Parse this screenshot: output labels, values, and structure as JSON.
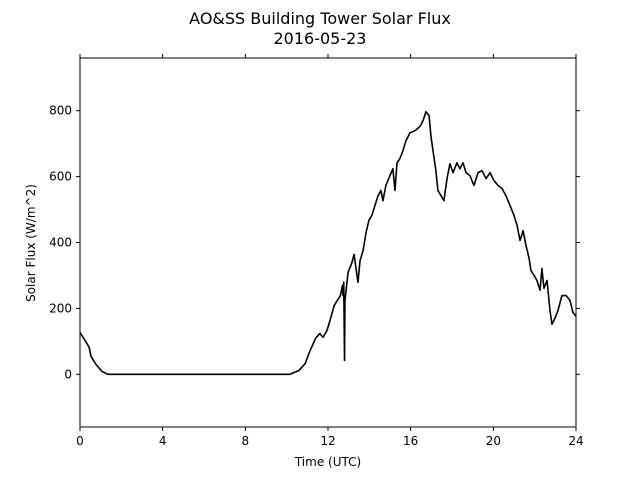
{
  "chart_data": {
    "type": "line",
    "title": "AO&SS Building Tower Solar Flux",
    "subtitle": "2016-05-23",
    "x_label": "Time (UTC)",
    "y_label": "Solar Flux (W/m^2)",
    "xlim": [
      0,
      24
    ],
    "xticks": [
      0,
      4,
      8,
      12,
      16,
      20,
      24
    ],
    "ylim": [
      -160,
      960
    ],
    "yticks": [
      0,
      200,
      400,
      600,
      800
    ],
    "grid": false,
    "series": [
      {
        "color": "#000000",
        "x": [
          0,
          0.24,
          0.44,
          0.53,
          0.77,
          1.06,
          1.35,
          10.16,
          10.6,
          10.9,
          11.1,
          11.4,
          11.6,
          11.76,
          11.95,
          12.1,
          12.3,
          12.6,
          12.7,
          12.73,
          12.76,
          12.8,
          12.82,
          12.97,
          13.16,
          13.26,
          13.36,
          13.45,
          13.55,
          13.7,
          13.84,
          13.98,
          14.12,
          14.27,
          14.42,
          14.56,
          14.66,
          14.8,
          15.0,
          15.14,
          15.24,
          15.34,
          15.48,
          15.63,
          15.77,
          15.97,
          16.2,
          16.45,
          16.6,
          16.74,
          16.89,
          16.98,
          17.08,
          17.22,
          17.32,
          17.47,
          17.61,
          17.76,
          17.9,
          18.05,
          18.24,
          18.38,
          18.53,
          18.68,
          18.87,
          19.06,
          19.26,
          19.45,
          19.65,
          19.84,
          20.03,
          20.23,
          20.42,
          20.61,
          20.81,
          21.0,
          21.15,
          21.29,
          21.44,
          21.58,
          21.73,
          21.82,
          21.97,
          22.11,
          22.26,
          22.35,
          22.45,
          22.6,
          22.74,
          22.84,
          22.98,
          23.13,
          23.32,
          23.52,
          23.71,
          23.85,
          24
        ],
        "values": [
          127,
          103,
          82,
          55,
          30,
          9,
          0,
          0,
          12,
          33,
          67,
          109,
          124,
          112,
          133,
          164,
          209,
          239,
          270,
          239,
          280,
          42,
          224,
          309,
          339,
          364,
          320,
          279,
          345,
          376,
          430,
          467,
          482,
          512,
          542,
          558,
          527,
          573,
          603,
          624,
          558,
          642,
          655,
          679,
          709,
          733,
          739,
          752,
          770,
          797,
          785,
          724,
          679,
          618,
          558,
          542,
          527,
          594,
          639,
          612,
          642,
          624,
          642,
          612,
          603,
          573,
          612,
          618,
          594,
          612,
          588,
          573,
          564,
          542,
          512,
          482,
          452,
          406,
          436,
          391,
          352,
          315,
          300,
          285,
          255,
          321,
          261,
          285,
          194,
          152,
          170,
          194,
          239,
          239,
          224,
          188,
          176
        ]
      }
    ]
  }
}
